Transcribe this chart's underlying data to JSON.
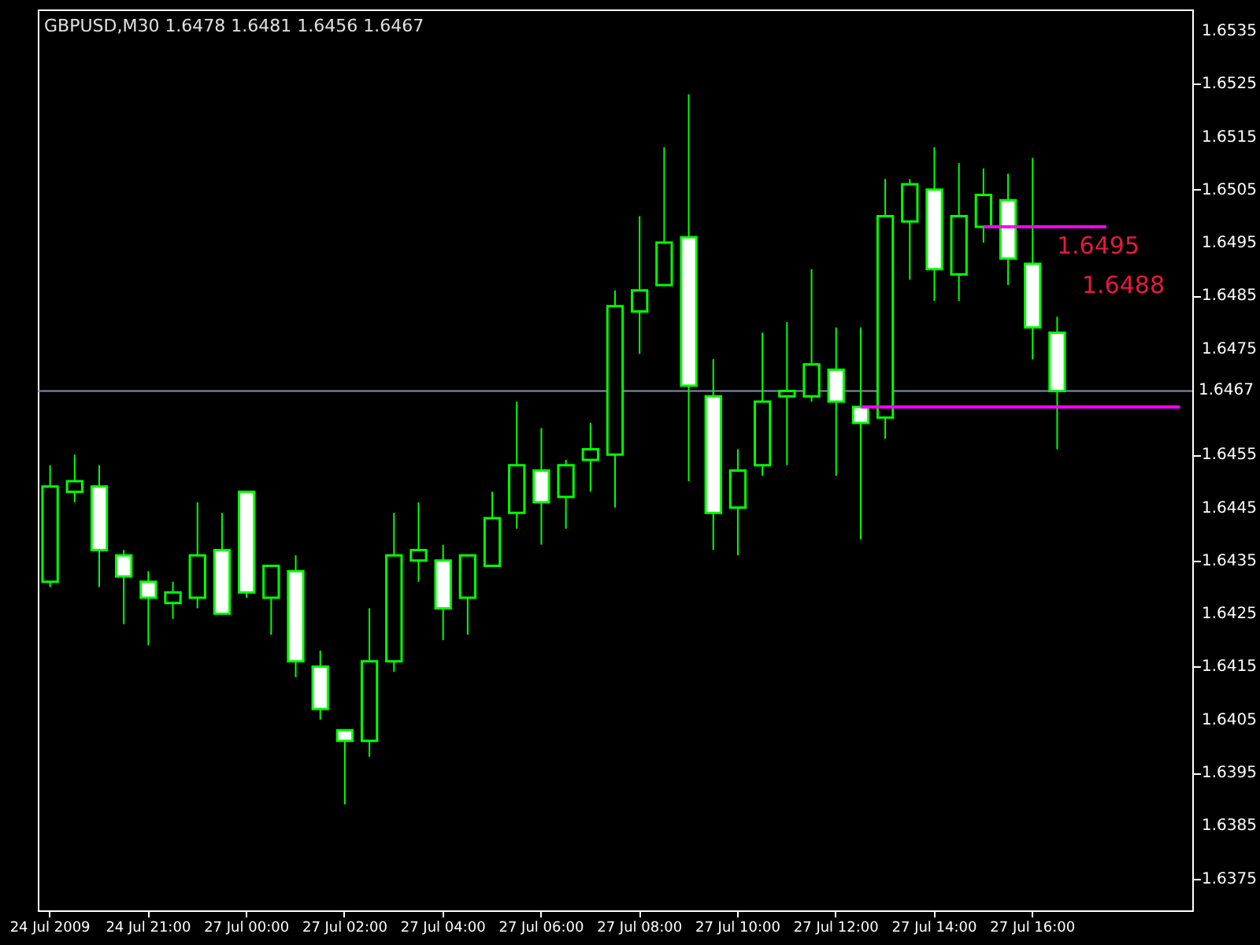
{
  "chart_data": {
    "type": "candlestick",
    "title": "GBPUSD,M30 1.6478 1.6481 1.6456 1.6467",
    "categories": [
      "24 Jul 2009",
      null,
      null,
      null,
      "24 Jul 21:00",
      null,
      null,
      null,
      "27 Jul 00:00",
      null,
      null,
      null,
      "27 Jul 02:00",
      null,
      null,
      null,
      "27 Jul 04:00",
      null,
      null,
      null,
      "27 Jul 06:00",
      null,
      null,
      null,
      "27 Jul 08:00",
      null,
      null,
      null,
      "27 Jul 10:00",
      null,
      null,
      null,
      "27 Jul 12:00",
      null,
      null,
      null,
      "27 Jul 14:00",
      null,
      null,
      null,
      "27 Jul 16:00",
      null,
      null,
      null,
      null,
      null,
      null
    ],
    "ohlc": [
      [
        1.6431,
        1.6453,
        1.643,
        1.6449
      ],
      [
        1.6448,
        1.6455,
        1.6446,
        1.645
      ],
      [
        1.6449,
        1.6453,
        1.643,
        1.6437
      ],
      [
        1.6436,
        1.6437,
        1.6423,
        1.6432
      ],
      [
        1.6431,
        1.6433,
        1.6419,
        1.6428
      ],
      [
        1.6427,
        1.6431,
        1.6424,
        1.6429
      ],
      [
        1.6428,
        1.6446,
        1.6426,
        1.6436
      ],
      [
        1.6437,
        1.6444,
        1.6425,
        1.6425
      ],
      [
        1.6448,
        1.6448,
        1.6428,
        1.6429
      ],
      [
        1.6428,
        1.6434,
        1.6421,
        1.6434
      ],
      [
        1.6433,
        1.6436,
        1.6413,
        1.6416
      ],
      [
        1.6415,
        1.6418,
        1.6405,
        1.6407
      ],
      [
        1.6403,
        1.6403,
        1.6389,
        1.6401
      ],
      [
        1.6401,
        1.6426,
        1.6398,
        1.6416
      ],
      [
        1.6416,
        1.6444,
        1.6414,
        1.6436
      ],
      [
        1.6435,
        1.6446,
        1.6431,
        1.6437
      ],
      [
        1.6435,
        1.6438,
        1.642,
        1.6426
      ],
      [
        1.6428,
        1.6436,
        1.6421,
        1.6436
      ],
      [
        1.6434,
        1.6448,
        1.6434,
        1.6443
      ],
      [
        1.6444,
        1.6465,
        1.6441,
        1.6453
      ],
      [
        1.6452,
        1.646,
        1.6438,
        1.6446
      ],
      [
        1.6447,
        1.6454,
        1.6441,
        1.6453
      ],
      [
        1.6454,
        1.6461,
        1.6448,
        1.6456
      ],
      [
        1.6455,
        1.6486,
        1.6445,
        1.6483
      ],
      [
        1.6482,
        1.65,
        1.6474,
        1.6486
      ],
      [
        1.6487,
        1.6513,
        1.6487,
        1.6495
      ],
      [
        1.6496,
        1.6523,
        1.645,
        1.6468
      ],
      [
        1.6466,
        1.6473,
        1.6437,
        1.6444
      ],
      [
        1.6445,
        1.6456,
        1.6436,
        1.6452
      ],
      [
        1.6453,
        1.6478,
        1.6451,
        1.6465
      ],
      [
        1.6466,
        1.648,
        1.6453,
        1.6467
      ],
      [
        1.6466,
        1.649,
        1.6465,
        1.6472
      ],
      [
        1.6471,
        1.6479,
        1.6451,
        1.6465
      ],
      [
        1.6464,
        1.6479,
        1.6439,
        1.6461
      ],
      [
        1.6462,
        1.6507,
        1.6458,
        1.65
      ],
      [
        1.6499,
        1.6507,
        1.6488,
        1.6506
      ],
      [
        1.6505,
        1.6513,
        1.6484,
        1.649
      ],
      [
        1.6489,
        1.651,
        1.6484,
        1.65
      ],
      [
        1.6498,
        1.6509,
        1.6495,
        1.6504
      ],
      [
        1.6503,
        1.6508,
        1.6487,
        1.6492
      ],
      [
        1.6491,
        1.6511,
        1.6473,
        1.6479
      ],
      [
        1.6478,
        1.6481,
        1.6456,
        1.6467
      ],
      null,
      null,
      null,
      null,
      null
    ],
    "color": "#00ff00",
    "colors": [
      "#000000",
      "#000000",
      "#ffffff",
      "#ffffff",
      "#ffffff",
      "#000000",
      "#000000",
      "#ffffff",
      "#ffffff",
      "#000000",
      "#ffffff",
      "#ffffff",
      "#ffffff",
      "#000000",
      "#000000",
      "#000000",
      "#ffffff",
      "#000000",
      "#000000",
      "#000000",
      "#ffffff",
      "#000000",
      "#000000",
      "#000000",
      "#000000",
      "#000000",
      "#ffffff",
      "#ffffff",
      "#000000",
      "#000000",
      "#000000",
      "#000000",
      "#ffffff",
      "#ffffff",
      "#000000",
      "#000000",
      "#ffffff",
      "#000000",
      "#000000",
      "#ffffff",
      "#ffffff",
      "#ffffff",
      null,
      null,
      null,
      null,
      null
    ],
    "series": [
      {
        "type": "line",
        "color": "#ff00ff",
        "values": [
          null,
          null,
          null,
          null,
          null,
          null,
          null,
          null,
          null,
          null,
          null,
          null,
          null,
          null,
          null,
          null,
          null,
          null,
          null,
          null,
          null,
          null,
          null,
          null,
          null,
          null,
          null,
          null,
          null,
          null,
          null,
          null,
          null,
          null,
          null,
          null,
          null,
          null,
          1.6498,
          1.6498,
          1.6498,
          1.6498,
          1.6498,
          1.6498,
          null,
          null,
          null
        ]
      },
      {
        "type": "line",
        "color": "#ff00ff",
        "values": [
          null,
          null,
          null,
          null,
          null,
          null,
          null,
          null,
          null,
          null,
          null,
          null,
          null,
          null,
          null,
          null,
          null,
          null,
          null,
          null,
          null,
          null,
          null,
          null,
          null,
          null,
          null,
          null,
          null,
          null,
          null,
          null,
          null,
          1.6464,
          1.6464,
          1.6464,
          1.6464,
          1.6464,
          1.6464,
          1.6464,
          1.6464,
          1.6464,
          1.6464,
          1.6464,
          1.6464,
          1.6464,
          1.6464
        ]
      }
    ],
    "ylim": [
      1.6369,
      1.6539
    ],
    "yticks": [
      1.6375,
      1.6385,
      1.6395,
      1.6405,
      1.6415,
      1.6425,
      1.6435,
      1.6445,
      1.6455,
      1.6475,
      1.6485,
      1.6495,
      1.6505,
      1.6515,
      1.6525,
      1.6535
    ],
    "ref_lines": [
      {
        "axis": "y",
        "value": 1.6467,
        "label": "1.6467",
        "color": "#8494a8"
      }
    ],
    "annotations": [
      "1.6495",
      "1.6488"
    ],
    "grid": false
  }
}
